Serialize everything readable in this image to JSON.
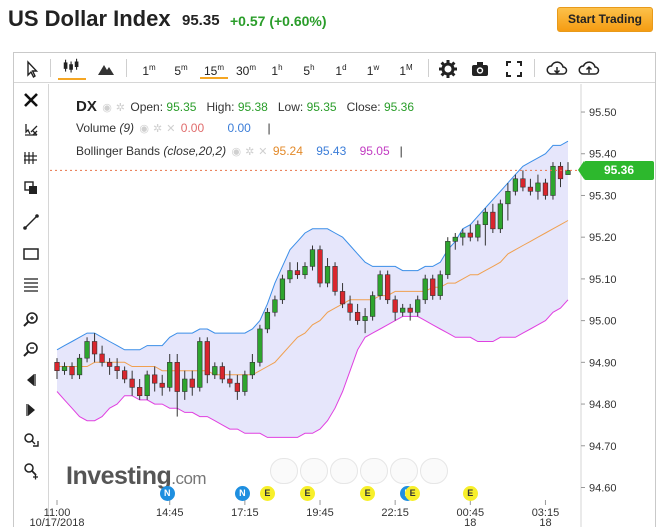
{
  "header": {
    "title": "US Dollar Index",
    "price": "95.35",
    "change": "+0.57 (+0.60%)",
    "cta_label": "Start Trading"
  },
  "toolbar": {
    "intervals": [
      "1m",
      "5m",
      "15m",
      "30m",
      "1h",
      "5h",
      "1d",
      "1w",
      "1M"
    ],
    "active_interval": "15m",
    "icons": [
      "cursor-icon",
      "candles-icon",
      "mountain-icon",
      "gear-icon",
      "camera-icon",
      "fullscreen-icon",
      "download-icon",
      "upload-icon"
    ]
  },
  "left_tools": [
    "close-icon",
    "crosshair-icon",
    "measure-icon",
    "copy-icon",
    "line-icon",
    "rectangle-icon",
    "fib-icon",
    "zoom-in-icon",
    "zoom-out-icon",
    "scroll-left-icon",
    "scroll-right-icon",
    "magnet-icon",
    "reset-icon"
  ],
  "legend": {
    "symbol": "DX",
    "open_label": "Open:",
    "open": "95.35",
    "high_label": "High:",
    "high": "95.38",
    "low_label": "Low:",
    "low": "95.35",
    "close_label": "Close:",
    "close": "95.36",
    "volume_label": "Volume",
    "volume_param": "(9)",
    "volume_val1": "0.00",
    "volume_val2": "0.00",
    "bb_label": "Bollinger Bands",
    "bb_params": "(close,20,2)",
    "bb_mid": "95.24",
    "bb_upper": "95.43",
    "bb_lower": "95.05"
  },
  "last_price_tag": "95.36",
  "logo": {
    "text": "Investing",
    "domain": ".com"
  },
  "events": [
    {
      "type": "N",
      "x_time": "14:40"
    },
    {
      "type": "N",
      "x_time": "17:10"
    },
    {
      "type": "E",
      "x_time": "18:00"
    },
    {
      "type": "E",
      "x_time": "19:20"
    },
    {
      "type": "E",
      "x_time": "21:20"
    },
    {
      "type": "N",
      "x_time": "22:40"
    },
    {
      "type": "E",
      "x_time": "22:50"
    },
    {
      "type": "E",
      "x_time": "00:45"
    }
  ],
  "colors": {
    "up": "#2ea52e",
    "down": "#d9262d",
    "upper_band": "#3b8ee8",
    "mid_band": "#f0a050",
    "lower_band": "#e040e0",
    "band_fill": "#e6e6fb",
    "last_line": "#e8744a",
    "accent": "#f5a623"
  },
  "chart_data": {
    "type": "candlestick",
    "interval": "15m",
    "y_ticks": [
      95.5,
      95.4,
      95.3,
      95.2,
      95.1,
      95.0,
      94.9,
      94.8,
      94.7,
      94.6
    ],
    "ylim": [
      94.57,
      95.56
    ],
    "x_tick_labels": [
      {
        "label": "11:00",
        "sub": "10/17/2018",
        "index": 0
      },
      {
        "label": "14:45",
        "sub": "",
        "index": 15
      },
      {
        "label": "17:15",
        "sub": "",
        "index": 25
      },
      {
        "label": "19:45",
        "sub": "",
        "index": 35
      },
      {
        "label": "22:15",
        "sub": "",
        "index": 45
      },
      {
        "label": "00:45",
        "sub": "18",
        "index": 55
      },
      {
        "label": "03:15",
        "sub": "18",
        "index": 65
      }
    ],
    "last_price": 95.36,
    "candles": [
      {
        "o": 94.9,
        "h": 94.91,
        "l": 94.86,
        "c": 94.88
      },
      {
        "o": 94.88,
        "h": 94.9,
        "l": 94.87,
        "c": 94.89
      },
      {
        "o": 94.89,
        "h": 94.9,
        "l": 94.86,
        "c": 94.87
      },
      {
        "o": 94.87,
        "h": 94.92,
        "l": 94.86,
        "c": 94.91
      },
      {
        "o": 94.91,
        "h": 94.96,
        "l": 94.9,
        "c": 94.95
      },
      {
        "o": 94.95,
        "h": 94.97,
        "l": 94.9,
        "c": 94.92
      },
      {
        "o": 94.92,
        "h": 94.94,
        "l": 94.89,
        "c": 94.9
      },
      {
        "o": 94.9,
        "h": 94.91,
        "l": 94.87,
        "c": 94.89
      },
      {
        "o": 94.89,
        "h": 94.91,
        "l": 94.86,
        "c": 94.88
      },
      {
        "o": 94.88,
        "h": 94.89,
        "l": 94.85,
        "c": 94.86
      },
      {
        "o": 94.86,
        "h": 94.88,
        "l": 94.82,
        "c": 94.84
      },
      {
        "o": 94.84,
        "h": 94.86,
        "l": 94.81,
        "c": 94.82
      },
      {
        "o": 94.82,
        "h": 94.88,
        "l": 94.81,
        "c": 94.87
      },
      {
        "o": 94.87,
        "h": 94.89,
        "l": 94.83,
        "c": 94.85
      },
      {
        "o": 94.85,
        "h": 94.87,
        "l": 94.82,
        "c": 94.84
      },
      {
        "o": 94.84,
        "h": 94.92,
        "l": 94.83,
        "c": 94.9
      },
      {
        "o": 94.9,
        "h": 94.92,
        "l": 94.77,
        "c": 94.83
      },
      {
        "o": 94.83,
        "h": 94.88,
        "l": 94.81,
        "c": 94.86
      },
      {
        "o": 94.86,
        "h": 94.88,
        "l": 94.82,
        "c": 94.84
      },
      {
        "o": 94.84,
        "h": 94.96,
        "l": 94.83,
        "c": 94.95
      },
      {
        "o": 94.95,
        "h": 94.96,
        "l": 94.85,
        "c": 94.87
      },
      {
        "o": 94.87,
        "h": 94.9,
        "l": 94.86,
        "c": 94.89
      },
      {
        "o": 94.89,
        "h": 94.9,
        "l": 94.85,
        "c": 94.86
      },
      {
        "o": 94.86,
        "h": 94.88,
        "l": 94.84,
        "c": 94.85
      },
      {
        "o": 94.85,
        "h": 94.87,
        "l": 94.81,
        "c": 94.83
      },
      {
        "o": 94.83,
        "h": 94.88,
        "l": 94.82,
        "c": 94.87
      },
      {
        "o": 94.87,
        "h": 94.92,
        "l": 94.86,
        "c": 94.9
      },
      {
        "o": 94.9,
        "h": 94.99,
        "l": 94.89,
        "c": 94.98
      },
      {
        "o": 94.98,
        "h": 95.03,
        "l": 94.97,
        "c": 95.02
      },
      {
        "o": 95.02,
        "h": 95.06,
        "l": 95.01,
        "c": 95.05
      },
      {
        "o": 95.05,
        "h": 95.11,
        "l": 95.04,
        "c": 95.1
      },
      {
        "o": 95.1,
        "h": 95.14,
        "l": 95.09,
        "c": 95.12
      },
      {
        "o": 95.12,
        "h": 95.14,
        "l": 95.1,
        "c": 95.11
      },
      {
        "o": 95.11,
        "h": 95.14,
        "l": 95.1,
        "c": 95.13
      },
      {
        "o": 95.13,
        "h": 95.18,
        "l": 95.12,
        "c": 95.17
      },
      {
        "o": 95.17,
        "h": 95.18,
        "l": 95.08,
        "c": 95.09
      },
      {
        "o": 95.09,
        "h": 95.15,
        "l": 95.08,
        "c": 95.13
      },
      {
        "o": 95.13,
        "h": 95.14,
        "l": 95.06,
        "c": 95.07
      },
      {
        "o": 95.07,
        "h": 95.09,
        "l": 95.03,
        "c": 95.04
      },
      {
        "o": 95.04,
        "h": 95.06,
        "l": 95.0,
        "c": 95.02
      },
      {
        "o": 95.02,
        "h": 95.04,
        "l": 94.99,
        "c": 95.0
      },
      {
        "o": 95.0,
        "h": 95.03,
        "l": 94.97,
        "c": 95.01
      },
      {
        "o": 95.01,
        "h": 95.07,
        "l": 95.0,
        "c": 95.06
      },
      {
        "o": 95.06,
        "h": 95.12,
        "l": 95.05,
        "c": 95.11
      },
      {
        "o": 95.11,
        "h": 95.12,
        "l": 95.04,
        "c": 95.05
      },
      {
        "o": 95.05,
        "h": 95.06,
        "l": 95.0,
        "c": 95.02
      },
      {
        "o": 95.02,
        "h": 95.04,
        "l": 95.01,
        "c": 95.03
      },
      {
        "o": 95.03,
        "h": 95.04,
        "l": 95.0,
        "c": 95.02
      },
      {
        "o": 95.02,
        "h": 95.06,
        "l": 95.01,
        "c": 95.05
      },
      {
        "o": 95.05,
        "h": 95.11,
        "l": 95.04,
        "c": 95.1
      },
      {
        "o": 95.1,
        "h": 95.11,
        "l": 95.05,
        "c": 95.06
      },
      {
        "o": 95.06,
        "h": 95.12,
        "l": 95.05,
        "c": 95.11
      },
      {
        "o": 95.11,
        "h": 95.2,
        "l": 95.1,
        "c": 95.19
      },
      {
        "o": 95.19,
        "h": 95.21,
        "l": 95.17,
        "c": 95.2
      },
      {
        "o": 95.2,
        "h": 95.22,
        "l": 95.18,
        "c": 95.21
      },
      {
        "o": 95.21,
        "h": 95.23,
        "l": 95.19,
        "c": 95.2
      },
      {
        "o": 95.2,
        "h": 95.24,
        "l": 95.19,
        "c": 95.23
      },
      {
        "o": 95.23,
        "h": 95.27,
        "l": 95.18,
        "c": 95.26
      },
      {
        "o": 95.26,
        "h": 95.28,
        "l": 95.21,
        "c": 95.22
      },
      {
        "o": 95.22,
        "h": 95.29,
        "l": 95.21,
        "c": 95.28
      },
      {
        "o": 95.28,
        "h": 95.33,
        "l": 95.24,
        "c": 95.31
      },
      {
        "o": 95.31,
        "h": 95.35,
        "l": 95.3,
        "c": 95.34
      },
      {
        "o": 95.34,
        "h": 95.36,
        "l": 95.31,
        "c": 95.32
      },
      {
        "o": 95.32,
        "h": 95.34,
        "l": 95.3,
        "c": 95.31
      },
      {
        "o": 95.31,
        "h": 95.35,
        "l": 95.29,
        "c": 95.33
      },
      {
        "o": 95.33,
        "h": 95.34,
        "l": 95.29,
        "c": 95.3
      },
      {
        "o": 95.3,
        "h": 95.38,
        "l": 95.29,
        "c": 95.37
      },
      {
        "o": 95.37,
        "h": 95.38,
        "l": 95.32,
        "c": 95.34
      },
      {
        "o": 95.35,
        "h": 95.38,
        "l": 95.35,
        "c": 95.36
      }
    ],
    "bollinger": {
      "upper": [
        94.93,
        94.94,
        94.95,
        94.96,
        94.97,
        94.97,
        94.96,
        94.95,
        94.94,
        94.93,
        94.93,
        94.93,
        94.94,
        94.94,
        94.94,
        94.96,
        94.97,
        94.97,
        94.97,
        94.98,
        94.98,
        94.97,
        94.97,
        94.97,
        94.97,
        94.97,
        94.98,
        95.0,
        95.04,
        95.09,
        95.13,
        95.17,
        95.19,
        95.21,
        95.22,
        95.22,
        95.22,
        95.21,
        95.2,
        95.18,
        95.16,
        95.14,
        95.13,
        95.13,
        95.13,
        95.13,
        95.12,
        95.12,
        95.12,
        95.13,
        95.13,
        95.14,
        95.17,
        95.19,
        95.22,
        95.23,
        95.25,
        95.27,
        95.29,
        95.31,
        95.33,
        95.35,
        95.37,
        95.38,
        95.39,
        95.4,
        95.42,
        95.42,
        95.43
      ],
      "mid": [
        94.89,
        94.89,
        94.89,
        94.89,
        94.89,
        94.9,
        94.9,
        94.9,
        94.9,
        94.9,
        94.89,
        94.89,
        94.89,
        94.89,
        94.88,
        94.88,
        94.88,
        94.88,
        94.88,
        94.88,
        94.88,
        94.87,
        94.87,
        94.87,
        94.87,
        94.87,
        94.87,
        94.88,
        94.89,
        94.9,
        94.92,
        94.94,
        94.96,
        94.97,
        94.99,
        95.0,
        95.02,
        95.03,
        95.04,
        95.05,
        95.05,
        95.05,
        95.05,
        95.06,
        95.06,
        95.07,
        95.07,
        95.07,
        95.07,
        95.07,
        95.08,
        95.08,
        95.09,
        95.09,
        95.1,
        95.11,
        95.11,
        95.12,
        95.13,
        95.14,
        95.16,
        95.17,
        95.18,
        95.19,
        95.2,
        95.21,
        95.22,
        95.23,
        95.24
      ],
      "lower": [
        94.83,
        94.81,
        94.79,
        94.77,
        94.76,
        94.76,
        94.77,
        94.79,
        94.8,
        94.82,
        94.82,
        94.81,
        94.81,
        94.8,
        94.8,
        94.79,
        94.79,
        94.78,
        94.78,
        94.77,
        94.77,
        94.76,
        94.75,
        94.74,
        94.74,
        94.73,
        94.73,
        94.73,
        94.72,
        94.72,
        94.72,
        94.72,
        94.72,
        94.73,
        94.73,
        94.74,
        94.76,
        94.79,
        94.83,
        94.88,
        94.93,
        94.96,
        94.97,
        94.98,
        94.99,
        95.0,
        95.01,
        95.01,
        95.01,
        95.0,
        94.99,
        94.98,
        94.97,
        94.96,
        94.96,
        94.96,
        94.95,
        94.95,
        94.95,
        94.96,
        94.96,
        94.96,
        94.97,
        94.98,
        94.99,
        95.0,
        95.02,
        95.03,
        95.05
      ]
    }
  }
}
